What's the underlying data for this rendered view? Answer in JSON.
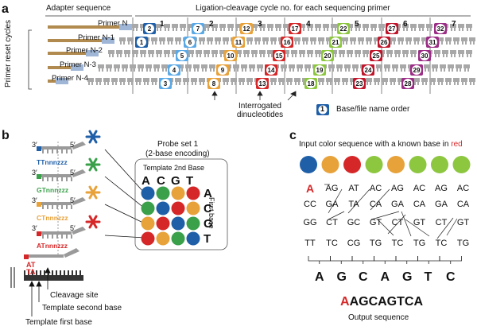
{
  "panels": {
    "a": "a",
    "b": "b",
    "c": "c"
  },
  "panel_a": {
    "header_adapter": "Adapter sequence",
    "header_cycle": "Ligation-cleavage cycle no. for each sequencing primer",
    "side_label": "Primer reset cycles",
    "cycle_numbers": [
      "1",
      "2",
      "3",
      "4",
      "5",
      "6",
      "7"
    ],
    "primers": [
      "Primer N",
      "Primer N-1",
      "Primer N-2",
      "Primer N-3",
      "Primer N-4"
    ],
    "interrogated_label": "Interrogated dinucleotides",
    "legend_number": "1",
    "legend_label": "Base/file name order",
    "badges": [
      {
        "n": "2",
        "color": "#1f5fa8"
      },
      {
        "n": "7",
        "color": "#5aa9e6"
      },
      {
        "n": "12",
        "color": "#e8a23a"
      },
      {
        "n": "17",
        "color": "#d62728"
      },
      {
        "n": "22",
        "color": "#8dc63f"
      },
      {
        "n": "27",
        "color": "#c0162c"
      },
      {
        "n": "32",
        "color": "#9b2d86"
      },
      {
        "n": "1",
        "color": "#1f5fa8"
      },
      {
        "n": "6",
        "color": "#5aa9e6"
      },
      {
        "n": "11",
        "color": "#e8a23a"
      },
      {
        "n": "16",
        "color": "#d62728"
      },
      {
        "n": "21",
        "color": "#8dc63f"
      },
      {
        "n": "26",
        "color": "#c0162c"
      },
      {
        "n": "31",
        "color": "#9b2d86"
      },
      {
        "n": "5",
        "color": "#5aa9e6"
      },
      {
        "n": "10",
        "color": "#e8a23a"
      },
      {
        "n": "15",
        "color": "#d62728"
      },
      {
        "n": "20",
        "color": "#8dc63f"
      },
      {
        "n": "25",
        "color": "#c0162c"
      },
      {
        "n": "30",
        "color": "#9b2d86"
      },
      {
        "n": "4",
        "color": "#5aa9e6"
      },
      {
        "n": "9",
        "color": "#e8a23a"
      },
      {
        "n": "14",
        "color": "#d62728"
      },
      {
        "n": "19",
        "color": "#8dc63f"
      },
      {
        "n": "24",
        "color": "#c0162c"
      },
      {
        "n": "29",
        "color": "#9b2d86"
      },
      {
        "n": "3",
        "color": "#5aa9e6"
      },
      {
        "n": "8",
        "color": "#e8a23a"
      },
      {
        "n": "13",
        "color": "#d62728"
      },
      {
        "n": "18",
        "color": "#8dc63f"
      },
      {
        "n": "23",
        "color": "#c0162c"
      },
      {
        "n": "28",
        "color": "#9b2d86"
      }
    ]
  },
  "panel_b": {
    "probe_title_1": "Probe set 1",
    "probe_title_2": "(2-base encoding)",
    "template_2nd": "Template 2nd Base",
    "first_base": "First base",
    "bases": [
      "A",
      "C",
      "G",
      "T"
    ],
    "probe_seq_1": "TTnnnzzz",
    "probe_seq_2": "GTnnnzzz",
    "probe_seq_3": "CTnnnzzz",
    "probe_seq_4": "ATnnnzzz",
    "prime3": "3′",
    "prime5": "5′",
    "template_pair_top": "AT",
    "template_pair_bottom": "TA",
    "cleavage_site": "Cleavage site",
    "template_second": "Template second base",
    "template_first": "Template first base",
    "matrix": [
      [
        "#1f5fa8",
        "#3aa04a",
        "#e8a23a",
        "#d62728"
      ],
      [
        "#3aa04a",
        "#1f5fa8",
        "#d62728",
        "#e8a23a"
      ],
      [
        "#e8a23a",
        "#d62728",
        "#1f5fa8",
        "#3aa04a"
      ],
      [
        "#d62728",
        "#e8a23a",
        "#3aa04a",
        "#1f5fa8"
      ]
    ],
    "star_colors": [
      "#1f5fa8",
      "#3aa04a",
      "#e8a23a",
      "#d62728"
    ]
  },
  "panel_c": {
    "title_part1": "Input color sequence with a known base in",
    "title_red": "red",
    "colors": [
      "#1f5fa8",
      "#e8a23a",
      "#d62728",
      "#8dc63f",
      "#e8a23a",
      "#8dc63f",
      "#8dc63f",
      "#8dc63f"
    ],
    "row1": [
      "A",
      "AG",
      "AT",
      "AC",
      "AG",
      "AC",
      "AG",
      "AC"
    ],
    "row1_first_red": "A",
    "row2": [
      "CC",
      "GA",
      "TA",
      "CA",
      "GA",
      "CA",
      "GA",
      "CA"
    ],
    "row3": [
      "GG",
      "CT",
      "GC",
      "GT",
      "CT",
      "GT",
      "CT",
      "GT"
    ],
    "row4": [
      "TT",
      "TC",
      "CG",
      "TG",
      "TC",
      "TG",
      "TC",
      "TG"
    ],
    "decoded": [
      "A",
      "G",
      "C",
      "A",
      "G",
      "T",
      "C"
    ],
    "output_red": "A",
    "output_rest": "AGCAGTCA",
    "output_label": "Output sequence"
  }
}
